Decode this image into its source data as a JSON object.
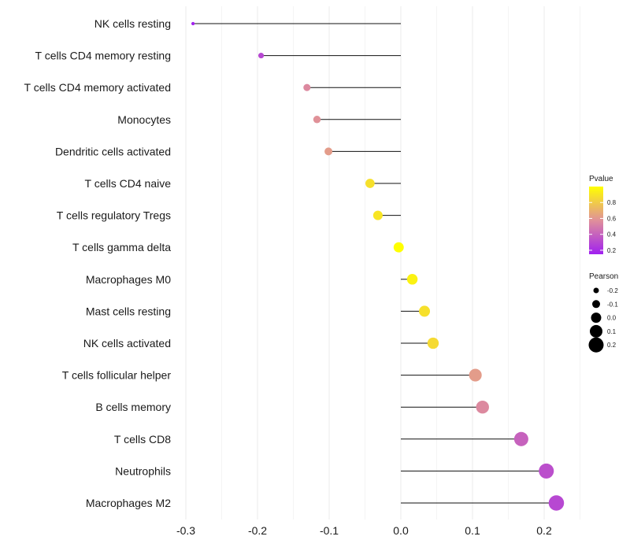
{
  "chart_data": {
    "type": "lollipop",
    "title": "",
    "xlabel": "",
    "ylabel": "",
    "xlim": [
      -0.32,
      0.25
    ],
    "xticks": [
      -0.3,
      -0.2,
      -0.1,
      0.0,
      0.1,
      0.2
    ],
    "xtick_labels": [
      "-0.3",
      "-0.2",
      "-0.1",
      "0.0",
      "0.1",
      "0.2"
    ],
    "categories": [
      "NK cells resting",
      "T cells CD4 memory resting",
      "T cells CD4 memory activated",
      "Monocytes",
      "Dendritic cells activated",
      "T cells CD4 naive",
      "T cells regulatory  Tregs ",
      "T cells gamma delta",
      "Macrophages M0",
      "Mast cells resting",
      "NK cells activated",
      "T cells follicular helper",
      "B cells memory",
      "T cells CD8",
      "Neutrophils",
      "Macrophages M2"
    ],
    "values": [
      -0.29,
      -0.195,
      -0.131,
      -0.117,
      -0.101,
      -0.043,
      -0.032,
      -0.003,
      0.016,
      0.033,
      0.045,
      0.104,
      0.114,
      0.168,
      0.203,
      0.217
    ],
    "pvalues": [
      0.16,
      0.3,
      0.55,
      0.58,
      0.62,
      0.88,
      0.9,
      1.0,
      0.95,
      0.88,
      0.86,
      0.62,
      0.55,
      0.4,
      0.33,
      0.3
    ],
    "grid": true,
    "legend": {
      "position": "right",
      "color_title": "Pvalue",
      "color_ticks": [
        "0.8",
        "0.6",
        "0.4",
        "0.2"
      ],
      "color_tick_values": [
        0.8,
        0.6,
        0.4,
        0.2
      ],
      "color_range": [
        0.15,
        1.0
      ],
      "color_low": "#a020f0",
      "color_mid": "#e0909a",
      "color_high": "#ffff00",
      "size_title": "Pearson",
      "size_labels": [
        "-0.2",
        "-0.1",
        "0.0",
        "0.1",
        "0.2"
      ],
      "size_values": [
        -0.2,
        -0.1,
        0.0,
        0.1,
        0.2
      ]
    }
  }
}
